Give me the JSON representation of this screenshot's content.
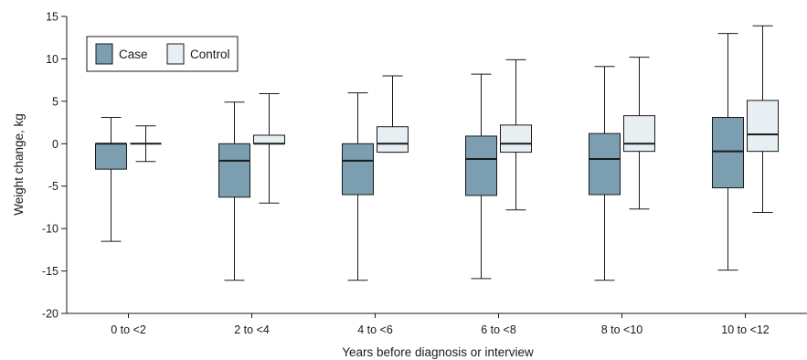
{
  "chart_data": {
    "type": "box",
    "xlabel": "Years before diagnosis or interview",
    "ylabel": "Weight change, kg",
    "ylim": [
      -20,
      15
    ],
    "yticks": [
      15,
      10,
      5,
      0,
      -5,
      -10,
      -15,
      -20
    ],
    "categories": [
      "0 to <2",
      "2 to <4",
      "4 to <6",
      "6 to <8",
      "8 to <10",
      "10 to <12"
    ],
    "grid": false,
    "legend_position": "top-left",
    "series": [
      {
        "name": "Case",
        "color": "#7b9fb0",
        "boxes": [
          {
            "min": -11.5,
            "q1": -3.0,
            "median": 0.0,
            "q3": 0.0,
            "max": 3.1
          },
          {
            "min": -16.1,
            "q1": -6.3,
            "median": -2.0,
            "q3": 0.0,
            "max": 4.9
          },
          {
            "min": -16.1,
            "q1": -6.0,
            "median": -2.0,
            "q3": 0.0,
            "max": 6.0
          },
          {
            "min": -15.9,
            "q1": -6.1,
            "median": -1.8,
            "q3": 0.9,
            "max": 8.2
          },
          {
            "min": -16.1,
            "q1": -6.0,
            "median": -1.8,
            "q3": 1.2,
            "max": 9.1
          },
          {
            "min": -14.9,
            "q1": -5.2,
            "median": -0.9,
            "q3": 3.1,
            "max": 13.0
          }
        ]
      },
      {
        "name": "Control",
        "color": "#e8eff2",
        "boxes": [
          {
            "min": -2.1,
            "q1": 0.0,
            "median": 0.0,
            "q3": 0.0,
            "max": 2.1
          },
          {
            "min": -7.0,
            "q1": 0.0,
            "median": 0.0,
            "q3": 1.0,
            "max": 5.9
          },
          {
            "min": -1.0,
            "q1": -1.0,
            "median": 0.0,
            "q3": 2.0,
            "max": 8.0
          },
          {
            "min": -7.8,
            "q1": -1.0,
            "median": 0.0,
            "q3": 2.2,
            "max": 9.9
          },
          {
            "min": -7.7,
            "q1": -0.9,
            "median": 0.0,
            "q3": 3.3,
            "max": 10.2
          },
          {
            "min": -8.1,
            "q1": -0.9,
            "median": 1.1,
            "q3": 5.1,
            "max": 13.9
          }
        ]
      }
    ]
  }
}
